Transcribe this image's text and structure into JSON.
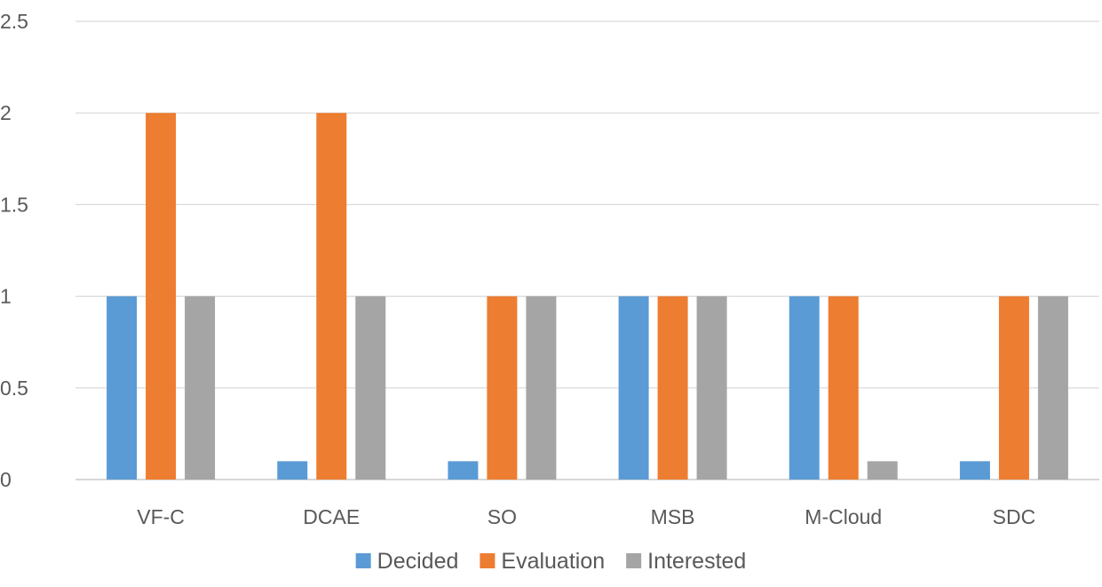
{
  "chart_data": {
    "type": "bar",
    "title": "",
    "xlabel": "",
    "ylabel": "",
    "categories": [
      "VF-C",
      "DCAE",
      "SO",
      "MSB",
      "M-Cloud",
      "SDC"
    ],
    "series": [
      {
        "name": "Decided",
        "color": "#5B9BD5",
        "values": [
          1,
          0.1,
          0.1,
          1,
          1,
          0.1
        ]
      },
      {
        "name": "Evaluation",
        "color": "#ED7D31",
        "values": [
          2,
          2,
          1,
          1,
          1,
          1
        ]
      },
      {
        "name": "Interested",
        "color": "#A5A5A5",
        "values": [
          1,
          1,
          1,
          1,
          0.1,
          1
        ]
      }
    ],
    "ylim": [
      0,
      2.5
    ],
    "yticks": [
      "0",
      "0.5",
      "1",
      "1.5",
      "2",
      "2.5"
    ],
    "grid": true,
    "legend_position": "bottom"
  }
}
